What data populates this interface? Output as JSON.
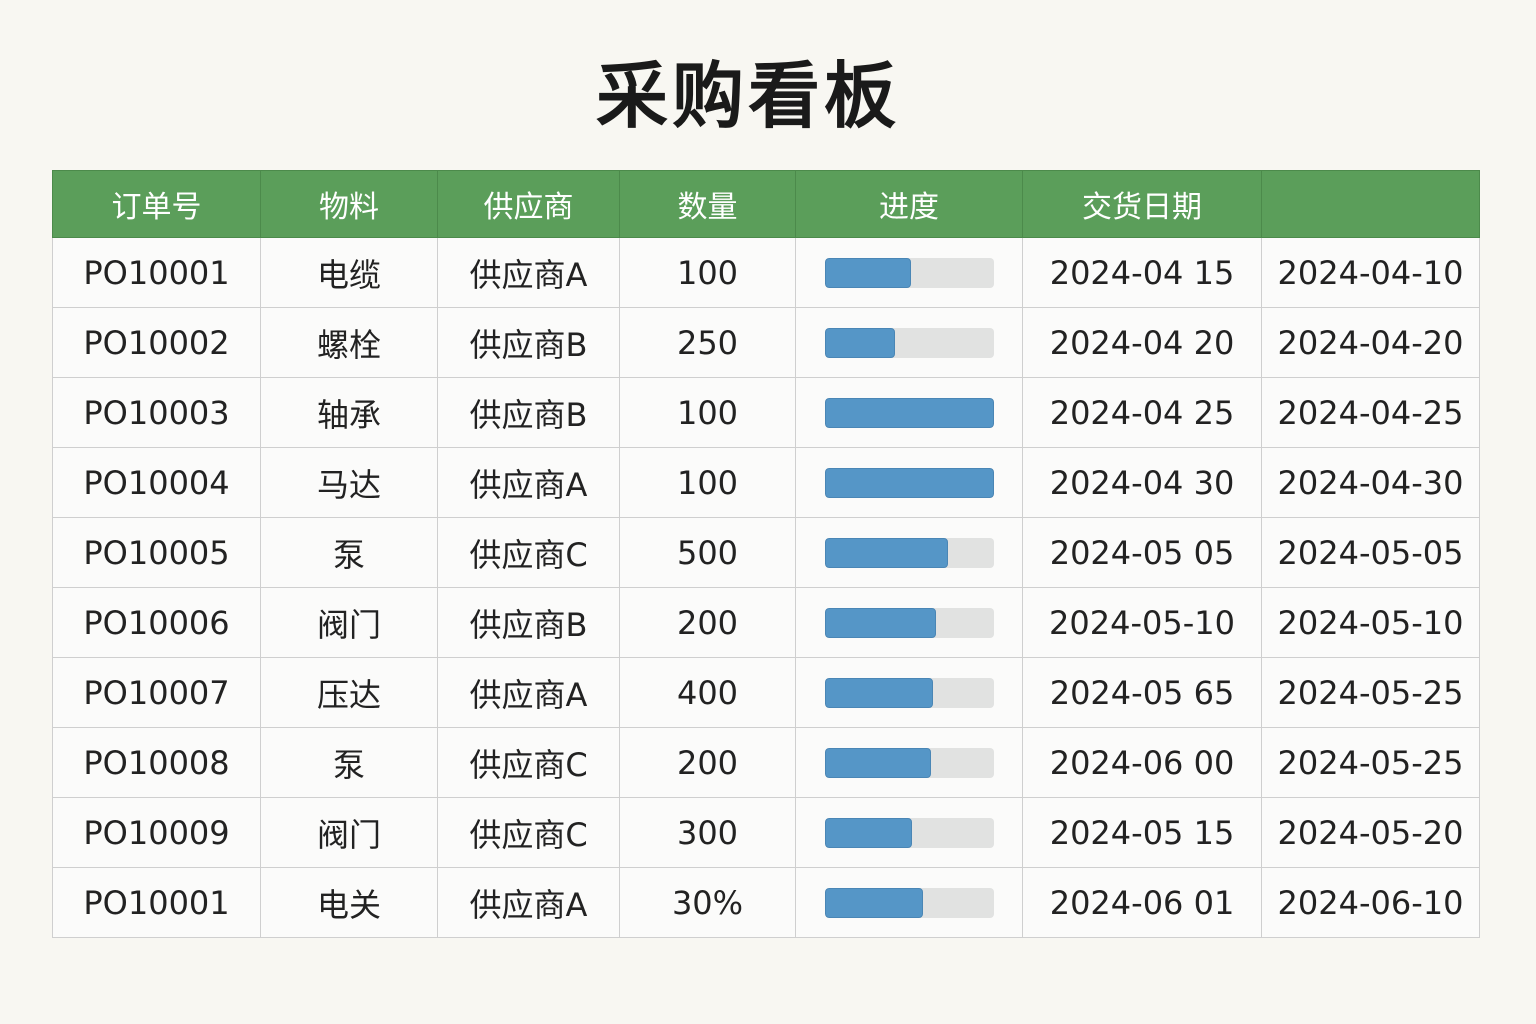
{
  "title": "采购看板",
  "colors": {
    "header_bg": "#5b9e5a",
    "bar_fill": "#5596c7",
    "bar_track": "#e1e2e1",
    "page_bg": "#f8f7f2"
  },
  "table": {
    "headers": [
      "订单号",
      "物料",
      "供应商",
      "数量",
      "进度",
      "交货日期",
      ""
    ],
    "rows": [
      {
        "order": "PO10001",
        "material": "电缆",
        "supplier": "供应商A",
        "qty": "100",
        "progress": 0.51,
        "delivery": "2024-04 15",
        "date2": "2024-04-10"
      },
      {
        "order": "PO10002",
        "material": "螺栓",
        "supplier": "供应商B",
        "qty": "250",
        "progress": 0.42,
        "delivery": "2024-04 20",
        "date2": "2024-04-20"
      },
      {
        "order": "PO10003",
        "material": "轴承",
        "supplier": "供应商B",
        "qty": "100",
        "progress": 1.0,
        "delivery": "2024-04 25",
        "date2": "2024-04-25"
      },
      {
        "order": "PO10004",
        "material": "马达",
        "supplier": "供应商A",
        "qty": "100",
        "progress": 1.0,
        "delivery": "2024-04 30",
        "date2": "2024-04-30"
      },
      {
        "order": "PO10005",
        "material": "泵",
        "supplier": "供应商C",
        "qty": "500",
        "progress": 0.73,
        "delivery": "2024-05 05",
        "date2": "2024-05-05"
      },
      {
        "order": "PO10006",
        "material": "阀门",
        "supplier": "供应商B",
        "qty": "200",
        "progress": 0.66,
        "delivery": "2024-05-10",
        "date2": "2024-05-10"
      },
      {
        "order": "PO10007",
        "material": "压达",
        "supplier": "供应商A",
        "qty": "400",
        "progress": 0.64,
        "delivery": "2024-05 65",
        "date2": "2024-05-25"
      },
      {
        "order": "PO10008",
        "material": "泵",
        "supplier": "供应商C",
        "qty": "200",
        "progress": 0.63,
        "delivery": "2024-06 00",
        "date2": "2024-05-25"
      },
      {
        "order": "PO10009",
        "material": "阀门",
        "supplier": "供应商C",
        "qty": "300",
        "progress": 0.52,
        "delivery": "2024-05 15",
        "date2": "2024-05-20"
      },
      {
        "order": "PO10001",
        "material": "电关",
        "supplier": "供应商A",
        "qty": "30%",
        "progress": 0.58,
        "delivery": "2024-06 01",
        "date2": "2024-06-10"
      }
    ]
  }
}
